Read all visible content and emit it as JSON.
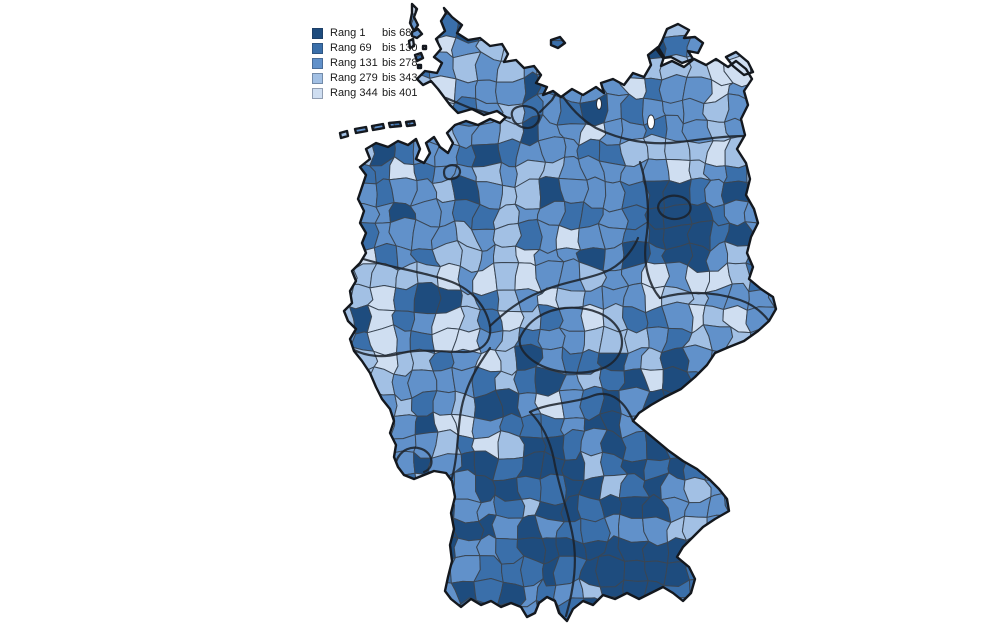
{
  "page": {
    "background_color": "#ffffff"
  },
  "legend": {
    "position": "top-left",
    "items": [
      {
        "label_range": "Rang 1",
        "label_bis": "bis 68",
        "color": "#1E4C7E"
      },
      {
        "label_range": "Rang 69",
        "label_bis": "bis 130",
        "color": "#3A6FAA"
      },
      {
        "label_range": "Rang 131",
        "label_bis": "bis 278",
        "color": "#6191CA"
      },
      {
        "label_range": "Rang 279",
        "label_bis": "bis 343",
        "color": "#A2C0E4"
      },
      {
        "label_range": "Rang 344",
        "label_bis": "bis 401",
        "color": "#CFDEF1"
      }
    ]
  },
  "chart_data": {
    "type": "choropleth",
    "title": "",
    "geography": "Germany",
    "unit": "Kreise / kreisfreie Staedte (districts)",
    "n_classes": 5,
    "rank_min": 1,
    "rank_max": 401,
    "classes": [
      {
        "label": "Rang 1 bis 68",
        "rank_from": 1,
        "rank_to": 68,
        "color": "#1E4C7E"
      },
      {
        "label": "Rang 69 bis 130",
        "rank_from": 69,
        "rank_to": 130,
        "color": "#3A6FAA"
      },
      {
        "label": "Rang 131 bis 278",
        "rank_from": 131,
        "rank_to": 278,
        "color": "#6191CA"
      },
      {
        "label": "Rang 279 bis 343",
        "rank_from": 279,
        "rank_to": 343,
        "color": "#A2C0E4"
      },
      {
        "label": "Rang 344 bis 401",
        "rank_from": 344,
        "rank_to": 401,
        "color": "#CFDEF1"
      }
    ],
    "legend_position": "top-left",
    "border_colors": {
      "district": "#3A4654",
      "state_and_country": "#161B22"
    },
    "spatial_pattern": [
      "Darkest ranks (1-68) concentrated in the south (Bavaria, Munich area, Stuttgart region)",
      "Large dark cluster around Berlin/Brandenburg and a dark spot at Hamburg",
      "Lightest ranks (344-401) form a band across central Germany (Thuringia / northern Hesse) and patches in the Ruhr area and Rhineland-Palatinate",
      "North and east coast regions mostly medium blue (rank 131-278)"
    ]
  }
}
